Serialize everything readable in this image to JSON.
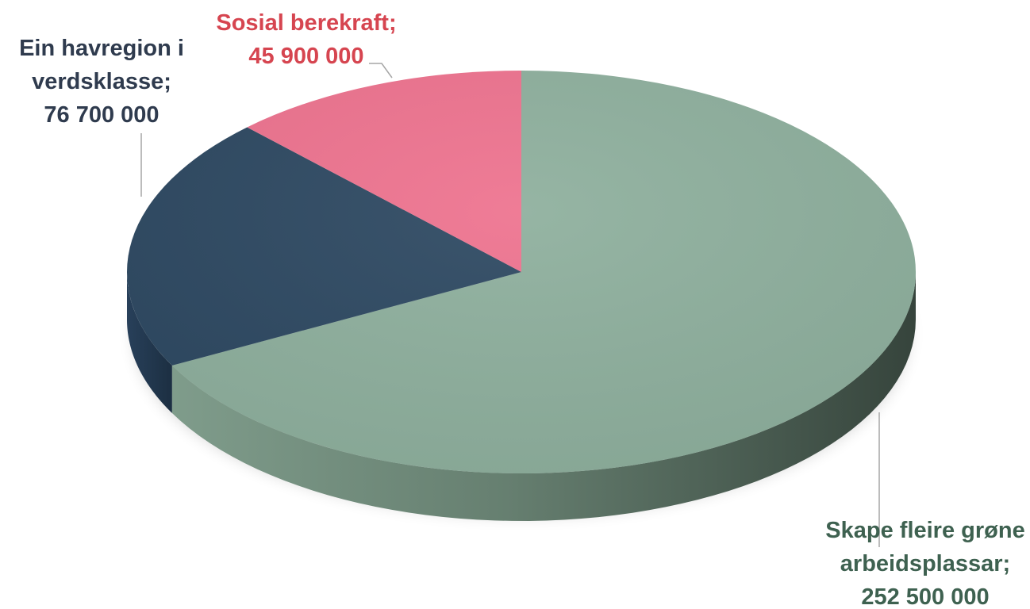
{
  "chart_data": {
    "type": "pie",
    "title": "",
    "style": "3d",
    "start_angle_deg": 0,
    "direction": "clockwise",
    "slices": [
      {
        "name": "Skape fleire grøne arbeidsplassar",
        "value": 252500000,
        "value_label": "252 500 000",
        "color": "#8fb09e",
        "side_color": "#3b4a41",
        "label_color": "#3e6150"
      },
      {
        "name": "Ein havregion i verdsklasse",
        "value": 76700000,
        "value_label": "76 700 000",
        "color": "#2f4a63",
        "side_color": "#1e3245",
        "label_color": "#2f3b4e"
      },
      {
        "name": "Sosial berekraft",
        "value": 45900000,
        "value_label": "45 900 000",
        "color": "#ee7490",
        "side_color": "#b0506a",
        "label_color": "#d64550"
      }
    ],
    "labels": [
      {
        "slice": 0,
        "lines": [
          "Skape fleire grøne",
          "arbeidsplassar;",
          "252 500 000"
        ]
      },
      {
        "slice": 1,
        "lines": [
          "Ein havregion i",
          "verdsklasse;",
          "76 700 000"
        ]
      },
      {
        "slice": 2,
        "lines": [
          "Sosial berekraft;",
          "45 900 000"
        ]
      }
    ],
    "legend": "none",
    "grid": false
  }
}
